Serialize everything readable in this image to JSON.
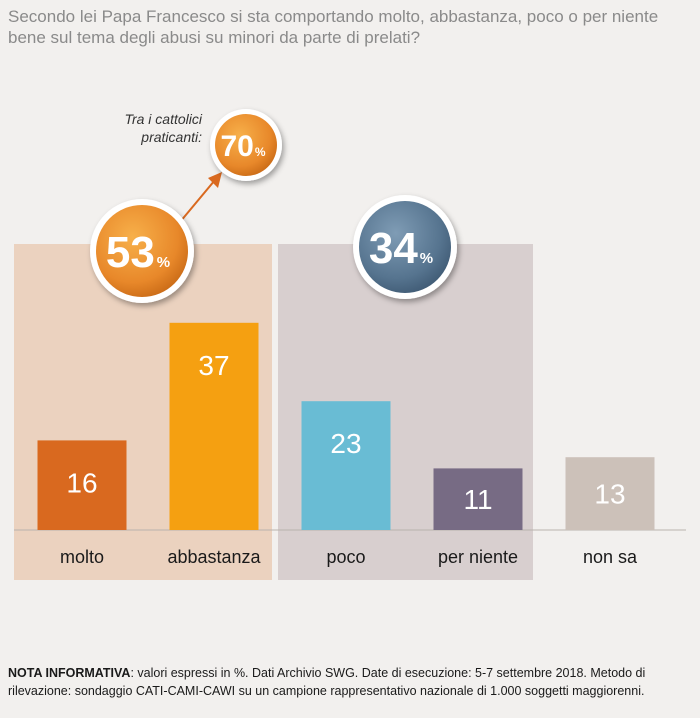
{
  "question": "Secondo lei Papa Francesco si sta comportando molto, abbastanza, poco o per niente bene sul tema degli abusi su minori da parte di prelati?",
  "callout": {
    "label_line1": "Tra i cattolici",
    "label_line2": "praticanti:",
    "value": "70",
    "unit": "%"
  },
  "groups": [
    {
      "value": "53",
      "unit": "%",
      "color": "#e8882a"
    },
    {
      "value": "34",
      "unit": "%",
      "color": "#5a7a95"
    }
  ],
  "chart_data": {
    "type": "bar",
    "categories": [
      "molto",
      "abbastanza",
      "poco",
      "per niente",
      "non sa"
    ],
    "values": [
      16,
      37,
      23,
      11,
      13
    ],
    "colors": [
      "#d9691f",
      "#f5a011",
      "#69bcd4",
      "#776b84",
      "#ccc1b9"
    ],
    "group_shading": [
      "#ebd2bf",
      "#d8cfcf"
    ],
    "ylim": [
      0,
      40
    ]
  },
  "note": {
    "label": "NOTA INFORMATIVA",
    "text": ": valori espressi in %. Dati Archivio SWG. Date di esecuzione: 5-7 settembre 2018. Metodo di rilevazione: sondaggio CATI-CAMI-CAWI su un campione rappresentativo nazionale di 1.000 soggetti maggiorenni."
  }
}
